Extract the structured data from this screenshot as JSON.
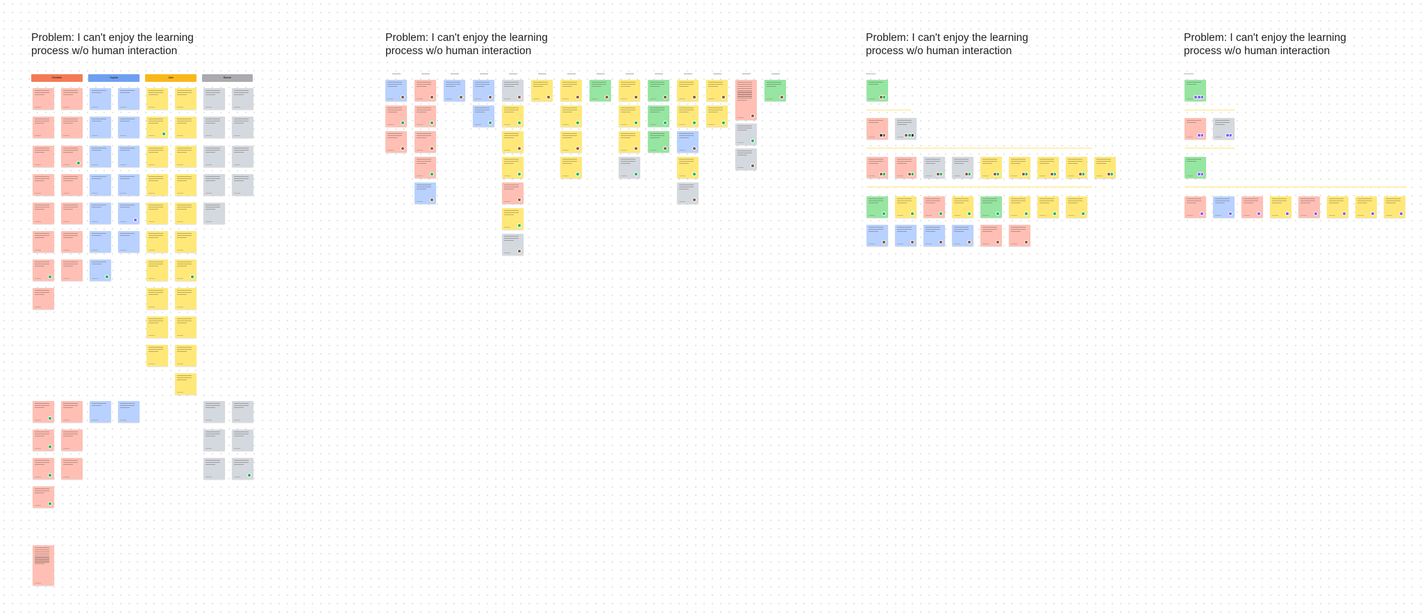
{
  "board": {
    "frames": [
      {
        "title": "Problem: I can't enjoy the learning process w/o human interaction"
      },
      {
        "title": "Problem: I can't enjoy the learning process w/o human interaction"
      },
      {
        "title": "Problem: I can't enjoy the learning process w/o human interaction"
      },
      {
        "title": "Problem: I can't enjoy the learning process w/o human interaction"
      }
    ],
    "persona_headers": [
      "Christian",
      "Sophia",
      "Jolie",
      "Roman"
    ]
  },
  "colors": {
    "red": "#ffbfb4",
    "blue": "#b8d1ff",
    "yellow": "#ffe878",
    "gray": "#d4d8df",
    "green": "#96e5a1",
    "header_orange": "#f47a55",
    "header_blue": "#6f9ff2",
    "header_yellow": "#f9b81a",
    "header_gray": "#a9abae",
    "avatar_green": "#1fb35a",
    "avatar_purple": "#7a5cff",
    "divider": "#ffe27a"
  },
  "icons": {
    "avatar": "avatar-icon",
    "vote": "vote-dot-icon"
  }
}
